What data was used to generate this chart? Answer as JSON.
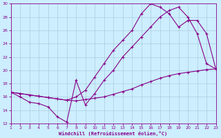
{
  "xlabel": "Windchill (Refroidissement éolien,°C)",
  "bg_color": "#cceeff",
  "grid_color": "#aaccdd",
  "line_color": "#880088",
  "xlim": [
    1,
    23
  ],
  "ylim": [
    12,
    30
  ],
  "xticks": [
    1,
    2,
    3,
    4,
    5,
    6,
    7,
    8,
    9,
    10,
    11,
    12,
    13,
    14,
    15,
    16,
    17,
    18,
    19,
    20,
    21,
    22,
    23
  ],
  "yticks": [
    12,
    14,
    16,
    18,
    20,
    22,
    24,
    26,
    28,
    30
  ],
  "line1_x": [
    1,
    2,
    3,
    4,
    5,
    6,
    7,
    8,
    9,
    10,
    11,
    12,
    13,
    14,
    15,
    16,
    17,
    18,
    19,
    20,
    21,
    22,
    23
  ],
  "line1_y": [
    16.7,
    16.5,
    16.3,
    16.1,
    15.9,
    15.7,
    15.5,
    15.4,
    15.6,
    15.8,
    16.0,
    16.4,
    16.8,
    17.2,
    17.8,
    18.3,
    18.8,
    19.2,
    19.5,
    19.7,
    19.9,
    20.1,
    20.2
  ],
  "line2_x": [
    1,
    2,
    3,
    4,
    5,
    6,
    7,
    8,
    9,
    10,
    11,
    12,
    13,
    14,
    15,
    16,
    17,
    18,
    19,
    20,
    21,
    22,
    23
  ],
  "line2_y": [
    16.7,
    16.0,
    15.2,
    15.0,
    14.5,
    13.0,
    12.2,
    18.5,
    14.8,
    16.5,
    18.5,
    20.0,
    22.0,
    23.5,
    25.0,
    26.5,
    28.0,
    29.0,
    29.5,
    28.0,
    25.5,
    21.0,
    20.2
  ],
  "line3_x": [
    1,
    2,
    3,
    4,
    5,
    6,
    7,
    8,
    9,
    10,
    11,
    12,
    13,
    14,
    15,
    16,
    17,
    18,
    19,
    20,
    21,
    22,
    23
  ],
  "line3_y": [
    16.7,
    16.5,
    16.3,
    16.1,
    15.9,
    15.7,
    15.5,
    16.0,
    17.0,
    19.0,
    21.0,
    23.0,
    24.5,
    26.0,
    28.5,
    30.0,
    29.5,
    28.5,
    26.5,
    27.5,
    27.5,
    25.5,
    20.2
  ]
}
